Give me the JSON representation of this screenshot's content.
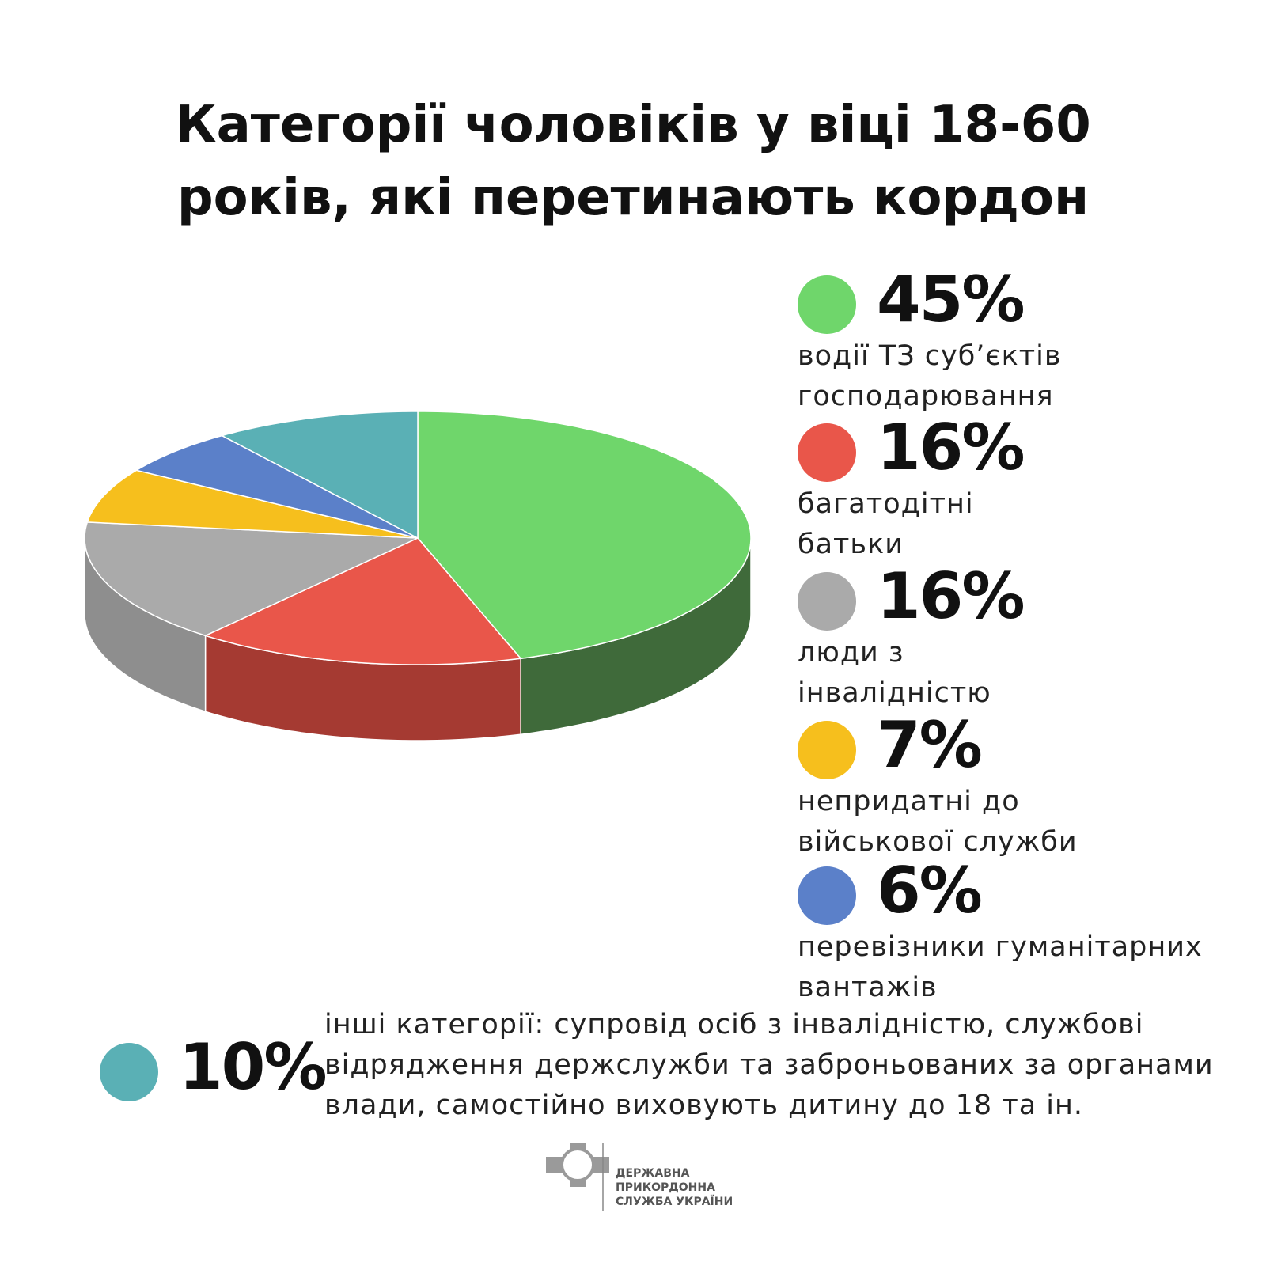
{
  "chart_data": {
    "type": "pie3d",
    "title": "Категорії чоловіків у віці 18-60 років, які перетинають кордон",
    "categories": [
      "водії ТЗ суб’єктів\nгосподарювання",
      "багатодітні\nбатьки",
      "люди з\nінвалідністю",
      "непридатні до\nвійськової служби",
      "перевізники гуманітарних\nвантажів",
      "інші категорії: супровід осіб з інвалідністю, службові\nвідрядження держслужби та заброньованих за органами\nвлади, самостійно виховують дитину до 18 та ін."
    ],
    "values": [
      45,
      16,
      16,
      7,
      6,
      10
    ],
    "value_labels": [
      "45%",
      "16%",
      "16%",
      "7%",
      "6%",
      "10%"
    ],
    "colors": [
      "#6fd66b",
      "#e9564a",
      "#aaaaaa",
      "#f6bf1d",
      "#5b80c9",
      "#5ab0b5"
    ],
    "side_colors": [
      "#3f6a3a",
      "#a53a32",
      "#8e8e8e",
      "#b8901a",
      "#3f5a90",
      "#3f8084"
    ]
  },
  "footer": {
    "org": "ДЕРЖАВНА\nПРИКОРДОННА\nСЛУЖБА УКРАЇНИ"
  }
}
